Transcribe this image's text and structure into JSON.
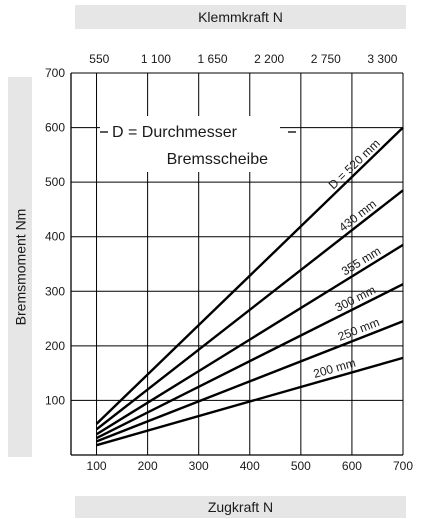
{
  "chart_data": {
    "type": "line",
    "top_axis_title": "Klemmkraft N",
    "bottom_axis_title": "Zugkraft N",
    "left_axis_title": "Bremsmoment Nm",
    "legend_line1": "D = Durchmesser",
    "legend_line2": "Bremsscheibe",
    "x_ticks": [
      "100",
      "200",
      "300",
      "400",
      "500",
      "600",
      "700"
    ],
    "top_ticks": [
      "550",
      "1 100",
      "1 650",
      "2 200",
      "2 750",
      "3 300"
    ],
    "y_ticks": [
      "100",
      "200",
      "300",
      "400",
      "500",
      "600",
      "700"
    ],
    "xlim": [
      50,
      700
    ],
    "ylim": [
      0,
      700
    ],
    "top_xlim": [
      275,
      3500
    ],
    "grid": true,
    "series": [
      {
        "name": "D = 520 mm",
        "x": [
          100,
          700
        ],
        "y": [
          57,
          600
        ]
      },
      {
        "name": "430 mm",
        "x": [
          100,
          700
        ],
        "y": [
          47,
          485
        ]
      },
      {
        "name": "355 mm",
        "x": [
          100,
          700
        ],
        "y": [
          38,
          385
        ]
      },
      {
        "name": "300 mm",
        "x": [
          100,
          700
        ],
        "y": [
          31,
          313
        ]
      },
      {
        "name": "250 mm",
        "x": [
          100,
          700
        ],
        "y": [
          25,
          245
        ]
      },
      {
        "name": "200 mm",
        "x": [
          100,
          700
        ],
        "y": [
          18,
          178
        ]
      }
    ]
  }
}
